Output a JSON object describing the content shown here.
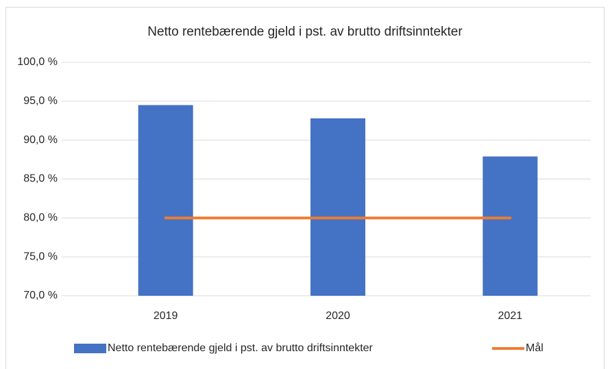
{
  "chart_data": {
    "type": "bar",
    "title": "Netto rentebærende gjeld i pst. av brutto driftsinntekter",
    "categories": [
      "2019",
      "2020",
      "2021"
    ],
    "series": [
      {
        "name": "Netto rentebærende gjeld i pst. av brutto driftsinntekter",
        "type": "bar",
        "color": "#4472c4",
        "values": [
          94.5,
          92.8,
          87.9
        ]
      },
      {
        "name": "Mål",
        "type": "line",
        "color": "#ed7d31",
        "values": [
          80,
          80,
          80
        ]
      }
    ],
    "ylim": [
      70,
      100
    ],
    "yticks": [
      {
        "value": 70,
        "label": "70,0 %"
      },
      {
        "value": 75,
        "label": "75,0 %"
      },
      {
        "value": 80,
        "label": "80,0 %"
      },
      {
        "value": 85,
        "label": "85,0 %"
      },
      {
        "value": 90,
        "label": "90,0 %"
      },
      {
        "value": 95,
        "label": "95,0 %"
      },
      {
        "value": 100,
        "label": "100,0 %"
      }
    ],
    "grid": true,
    "legend": "bottom"
  }
}
